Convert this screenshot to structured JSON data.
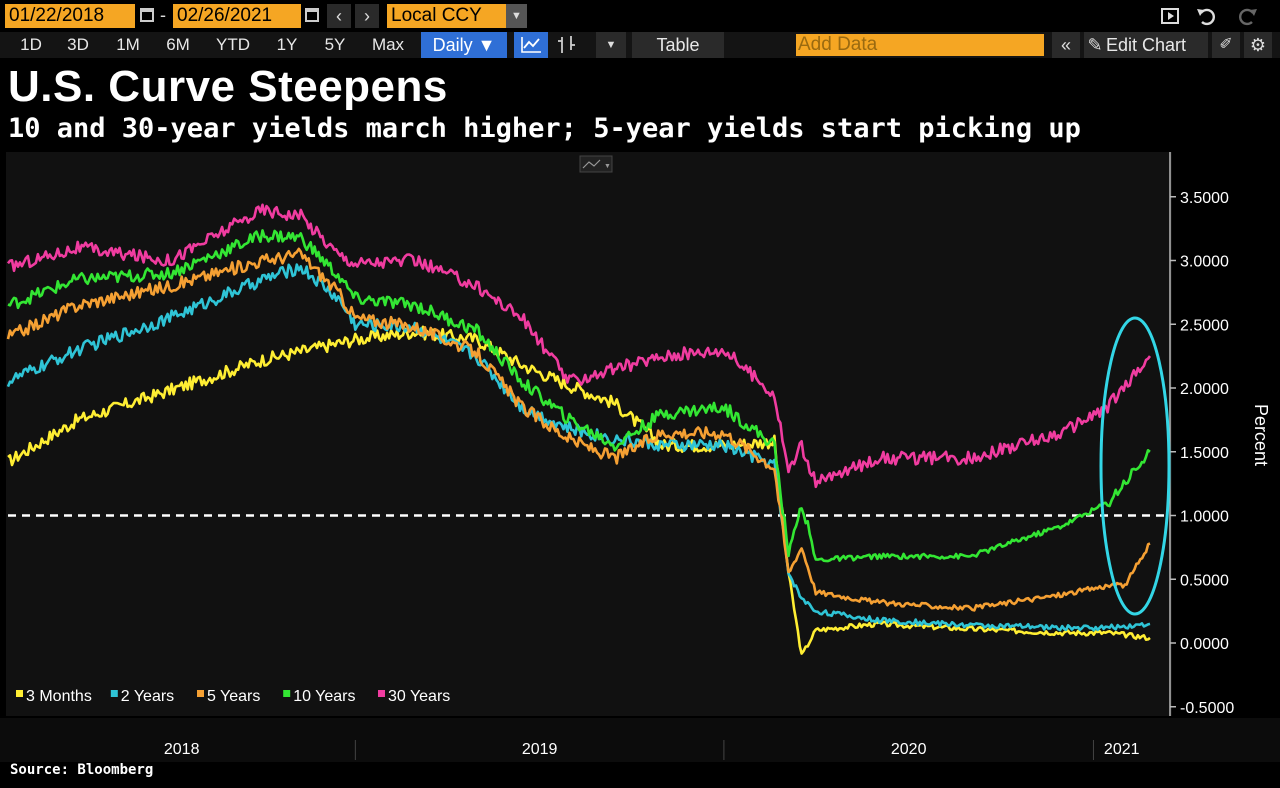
{
  "toolbar": {
    "start_date": "01/22/2018",
    "end_date": "02/26/2021",
    "date_separator": "-",
    "currency": "Local CCY",
    "periods": [
      "1D",
      "3D",
      "1M",
      "6M",
      "YTD",
      "1Y",
      "5Y",
      "Max"
    ],
    "frequency": "Daily ▼",
    "table_label": "Table",
    "add_data_placeholder": "Add Data",
    "edit_chart_label": "Edit Chart"
  },
  "colors": {
    "accent_orange": "#f5a623",
    "selected_blue": "#2f6fd6",
    "highlight_ellipse": "#33d6e6"
  },
  "source": "Source: Bloomberg",
  "chart_data": {
    "type": "line",
    "title": "U.S. Curve Steepens",
    "subtitle": "10 and 30-year yields march higher; 5-year yields start picking up",
    "ylabel": "Percent",
    "ylim": [
      -0.55,
      3.75
    ],
    "yticks": [
      3.5,
      3.0,
      2.5,
      2.0,
      1.5,
      1.0,
      0.5,
      0.0,
      -0.5
    ],
    "ytick_labels": [
      "3.5000",
      "3.0000",
      "2.5000",
      "2.0000",
      "1.5000",
      "1.0000",
      "0.5000",
      "0.0000",
      "-0.5000"
    ],
    "x_labels": [
      "2018",
      "2019",
      "2020",
      "2021"
    ],
    "x_range": [
      "2018-01-22",
      "2021-02-26"
    ],
    "reference_line": 1.0,
    "grid": false,
    "legend_position": "bottom-left",
    "annotation": "ellipse highlighting early-2021 rise",
    "series": [
      {
        "name": "3 Months",
        "color": "#ffee33",
        "x": [
          "2018-01-22",
          "2018-04-01",
          "2018-07-01",
          "2018-10-01",
          "2019-01-01",
          "2019-03-01",
          "2019-05-01",
          "2019-06-15",
          "2019-08-01",
          "2019-09-15",
          "2019-11-01",
          "2020-01-01",
          "2020-02-20",
          "2020-03-05",
          "2020-03-18",
          "2020-04-01",
          "2020-06-01",
          "2020-09-01",
          "2020-12-01",
          "2021-01-15",
          "2021-02-26"
        ],
        "values": [
          1.42,
          1.75,
          1.98,
          2.22,
          2.38,
          2.44,
          2.38,
          2.18,
          2.02,
          1.88,
          1.55,
          1.55,
          1.58,
          0.55,
          -0.1,
          0.1,
          0.15,
          0.11,
          0.08,
          0.08,
          0.04
        ]
      },
      {
        "name": "2 Years",
        "color": "#2fc4d6",
        "x": [
          "2018-01-22",
          "2018-04-01",
          "2018-07-01",
          "2018-10-01",
          "2018-11-08",
          "2018-12-15",
          "2019-01-01",
          "2019-03-01",
          "2019-05-01",
          "2019-06-15",
          "2019-08-01",
          "2019-09-15",
          "2019-11-01",
          "2020-01-01",
          "2020-02-20",
          "2020-03-05",
          "2020-03-18",
          "2020-04-01",
          "2020-06-01",
          "2020-09-01",
          "2020-12-01",
          "2021-01-15",
          "2021-02-26"
        ],
        "values": [
          2.05,
          2.3,
          2.55,
          2.85,
          2.95,
          2.7,
          2.5,
          2.48,
          2.25,
          1.85,
          1.68,
          1.6,
          1.55,
          1.55,
          1.4,
          0.55,
          0.35,
          0.25,
          0.18,
          0.14,
          0.12,
          0.12,
          0.15
        ]
      },
      {
        "name": "5 Years",
        "color": "#f5a033",
        "x": [
          "2018-01-22",
          "2018-04-01",
          "2018-07-01",
          "2018-10-01",
          "2018-11-08",
          "2018-12-15",
          "2019-01-01",
          "2019-03-01",
          "2019-05-01",
          "2019-06-15",
          "2019-08-01",
          "2019-09-15",
          "2019-11-01",
          "2020-01-01",
          "2020-02-20",
          "2020-03-05",
          "2020-03-18",
          "2020-04-01",
          "2020-06-01",
          "2020-09-01",
          "2020-12-01",
          "2021-01-15",
          "2021-02-01",
          "2021-02-26"
        ],
        "values": [
          2.4,
          2.65,
          2.8,
          3.0,
          3.05,
          2.75,
          2.55,
          2.48,
          2.28,
          1.85,
          1.6,
          1.45,
          1.65,
          1.65,
          1.38,
          0.55,
          0.75,
          0.4,
          0.32,
          0.27,
          0.38,
          0.45,
          0.45,
          0.78
        ]
      },
      {
        "name": "10 Years",
        "color": "#33e633",
        "x": [
          "2018-01-22",
          "2018-04-01",
          "2018-07-01",
          "2018-10-01",
          "2018-11-08",
          "2018-12-15",
          "2019-01-01",
          "2019-03-01",
          "2019-05-01",
          "2019-06-15",
          "2019-08-01",
          "2019-09-15",
          "2019-11-01",
          "2020-01-01",
          "2020-02-20",
          "2020-03-05",
          "2020-03-18",
          "2020-04-01",
          "2020-06-01",
          "2020-09-01",
          "2020-12-01",
          "2021-01-15",
          "2021-02-26"
        ],
        "values": [
          2.65,
          2.85,
          2.9,
          3.2,
          3.18,
          2.88,
          2.7,
          2.65,
          2.45,
          2.05,
          1.75,
          1.55,
          1.8,
          1.85,
          1.55,
          0.7,
          1.1,
          0.65,
          0.68,
          0.68,
          0.92,
          1.1,
          1.5
        ]
      },
      {
        "name": "30 Years",
        "color": "#f03ca0",
        "x": [
          "2018-01-22",
          "2018-04-01",
          "2018-07-01",
          "2018-10-01",
          "2018-11-08",
          "2018-12-15",
          "2019-01-01",
          "2019-03-01",
          "2019-05-01",
          "2019-06-15",
          "2019-08-01",
          "2019-09-15",
          "2019-11-01",
          "2020-01-01",
          "2020-02-20",
          "2020-03-05",
          "2020-03-18",
          "2020-04-01",
          "2020-06-01",
          "2020-09-01",
          "2020-12-01",
          "2021-01-15",
          "2021-02-26"
        ],
        "values": [
          2.95,
          3.1,
          3.0,
          3.4,
          3.35,
          3.05,
          2.98,
          3.0,
          2.8,
          2.55,
          2.05,
          2.15,
          2.25,
          2.3,
          1.95,
          1.35,
          1.55,
          1.25,
          1.45,
          1.45,
          1.65,
          1.85,
          2.25
        ]
      }
    ]
  }
}
